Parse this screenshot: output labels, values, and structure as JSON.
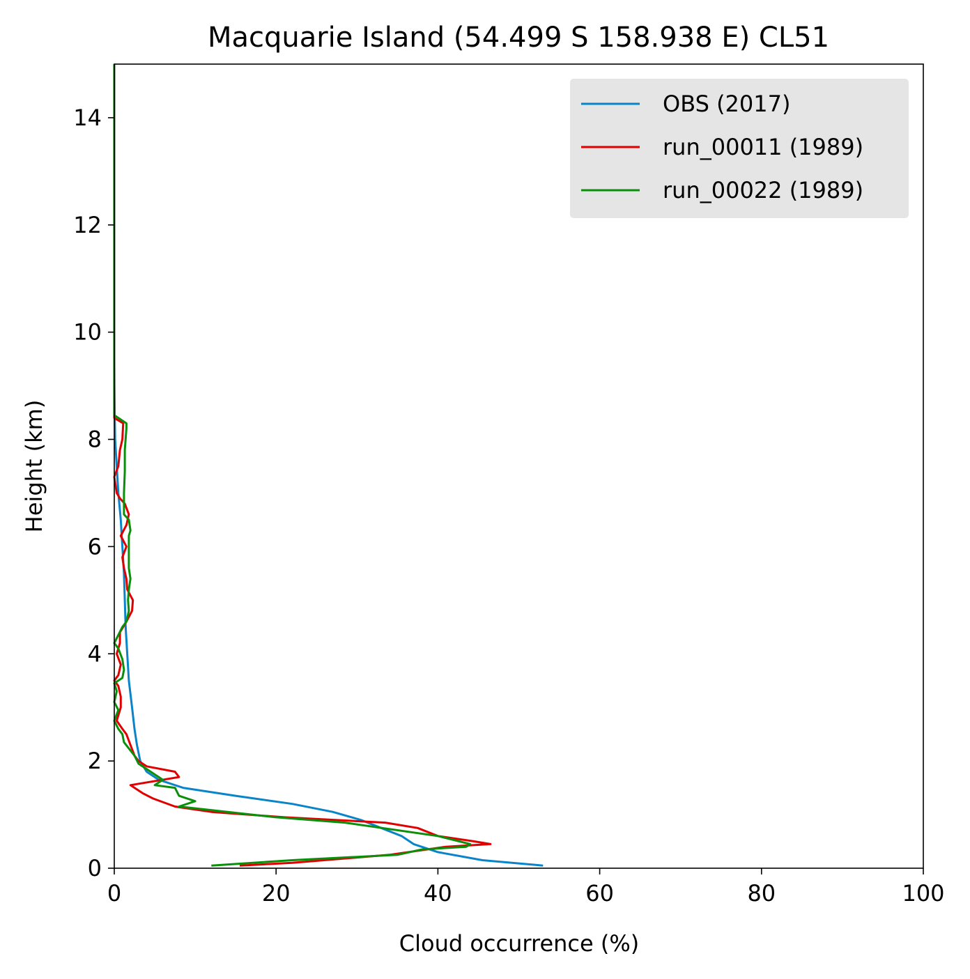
{
  "chart_data": {
    "type": "line",
    "title": "Macquarie Island (54.499 S 158.938 E) CL51",
    "xlabel": "Cloud occurrence (%)",
    "ylabel": "Height (km)",
    "xlim": [
      0,
      100
    ],
    "ylim": [
      0,
      15
    ],
    "xticks": [
      0,
      20,
      40,
      60,
      80,
      100
    ],
    "yticks": [
      0,
      2,
      4,
      6,
      8,
      10,
      12,
      14
    ],
    "grid": false,
    "legend_position": "top-right",
    "series": [
      {
        "name": "OBS (2017)",
        "color": "#0a84c8",
        "x": [
          53.0,
          45.5,
          40.0,
          37.0,
          35.5,
          33.0,
          30.5,
          27.0,
          22.0,
          15.0,
          8.5,
          5.5,
          4.0,
          3.2,
          2.8,
          2.5,
          2.2,
          1.8,
          1.6,
          1.4,
          1.3,
          1.2,
          1.0,
          0.8,
          0.5,
          0.3,
          0.1,
          0.05,
          0.02,
          0.0,
          0.0,
          0.0,
          0.0
        ],
        "y": [
          0.05,
          0.15,
          0.3,
          0.45,
          0.6,
          0.75,
          0.9,
          1.05,
          1.2,
          1.35,
          1.5,
          1.65,
          1.8,
          2.0,
          2.3,
          2.6,
          3.0,
          3.5,
          4.0,
          4.5,
          5.0,
          5.5,
          6.0,
          6.5,
          7.0,
          7.5,
          8.0,
          8.5,
          9.0,
          9.5,
          10.0,
          12.0,
          15.0
        ]
      },
      {
        "name": "run_00011 (1989)",
        "color": "#e00000",
        "x": [
          15.5,
          22.0,
          34.0,
          41.0,
          46.5,
          44.5,
          40.0,
          37.5,
          33.5,
          21.0,
          12.0,
          7.5,
          4.8,
          3.5,
          2.0,
          8.0,
          7.5,
          4.0,
          3.0,
          2.5,
          2.0,
          1.5,
          1.0,
          0.3,
          0.5,
          0.8,
          0.8,
          0.5,
          0.0,
          0.5,
          0.8,
          0.3,
          0.7,
          0.7,
          1.5,
          2.2,
          2.3,
          1.6,
          1.5,
          1.2,
          1.0,
          1.5,
          0.8,
          1.5,
          1.8,
          1.3,
          0.7,
          0.3,
          0.0,
          0.5,
          0.7,
          1.0,
          1.1,
          0.0,
          0.0,
          0.0
        ],
        "y": [
          0.05,
          0.1,
          0.25,
          0.4,
          0.45,
          0.5,
          0.6,
          0.75,
          0.85,
          0.95,
          1.05,
          1.15,
          1.3,
          1.4,
          1.55,
          1.7,
          1.8,
          1.9,
          2.0,
          2.1,
          2.3,
          2.5,
          2.6,
          2.75,
          2.85,
          3.0,
          3.2,
          3.4,
          3.5,
          3.6,
          3.8,
          4.0,
          4.2,
          4.4,
          4.6,
          4.8,
          5.0,
          5.2,
          5.4,
          5.6,
          5.8,
          6.0,
          6.2,
          6.4,
          6.6,
          6.8,
          6.9,
          7.0,
          7.3,
          7.5,
          7.8,
          8.0,
          8.3,
          8.4,
          10.0,
          15.0
        ]
      },
      {
        "name": "run_00022 (1989)",
        "color": "#0a8f0a",
        "x": [
          12.0,
          22.0,
          35.0,
          38.0,
          43.5,
          44.0,
          40.0,
          28.5,
          20.0,
          8.0,
          10.0,
          8.0,
          7.5,
          5.0,
          6.0,
          3.0,
          2.5,
          1.2,
          1.0,
          0.5,
          0.0,
          0.5,
          0.0,
          0.3,
          0.0,
          1.0,
          1.2,
          1.0,
          0.5,
          0.0,
          0.5,
          1.0,
          1.5,
          1.8,
          1.7,
          1.8,
          2.0,
          1.8,
          1.8,
          1.8,
          1.8,
          2.0,
          1.8,
          1.2,
          1.2,
          1.2,
          1.3,
          1.3,
          1.5,
          1.5,
          0.0,
          0.0,
          0.0
        ],
        "y": [
          0.05,
          0.15,
          0.25,
          0.35,
          0.4,
          0.45,
          0.6,
          0.85,
          0.95,
          1.15,
          1.25,
          1.35,
          1.5,
          1.55,
          1.65,
          1.95,
          2.1,
          2.35,
          2.5,
          2.6,
          2.75,
          2.95,
          3.1,
          3.3,
          3.45,
          3.55,
          3.7,
          3.9,
          4.1,
          4.2,
          4.35,
          4.5,
          4.6,
          4.8,
          5.0,
          5.2,
          5.4,
          5.6,
          5.8,
          6.0,
          6.2,
          6.3,
          6.5,
          6.6,
          6.8,
          7.0,
          7.4,
          7.8,
          8.2,
          8.3,
          8.45,
          10.0,
          15.0
        ]
      }
    ]
  }
}
